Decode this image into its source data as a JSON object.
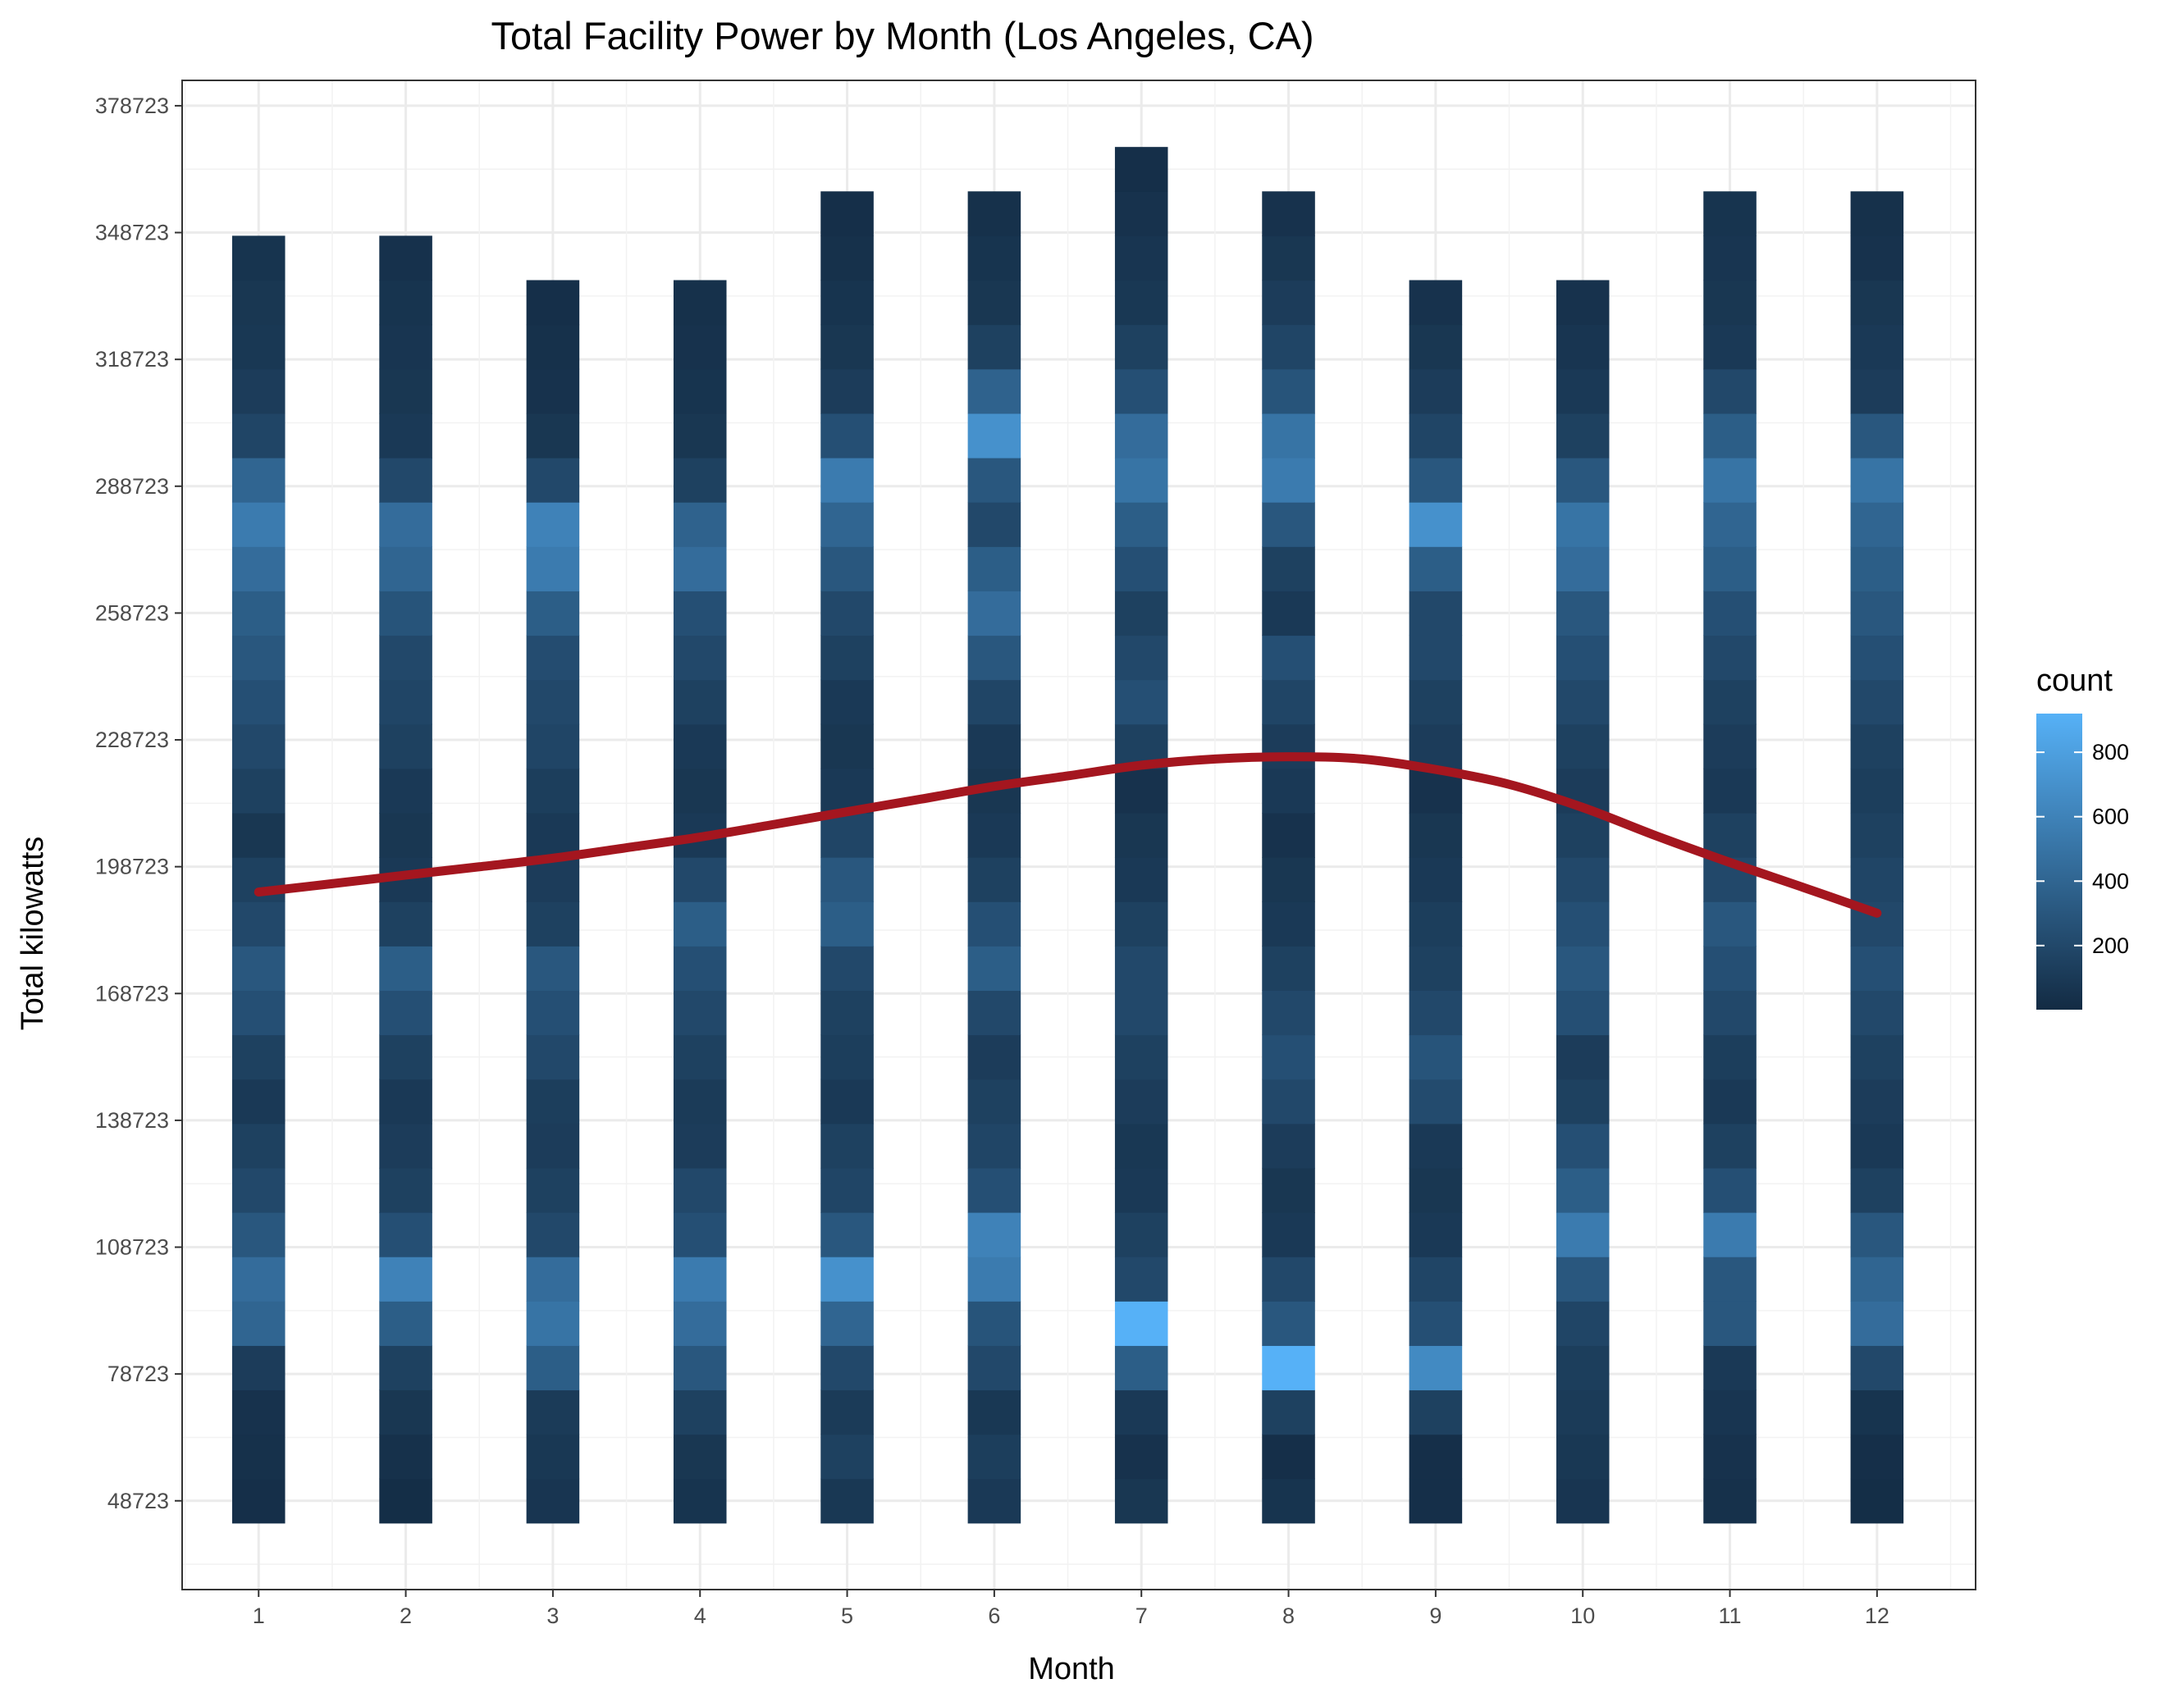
{
  "chart_data": {
    "type": "heatmap",
    "title": "Total Facility Power by Month (Los Angeles, CA)",
    "xlabel": "Month",
    "ylabel": "Total kilowatts",
    "x_ticks": [
      "1",
      "2",
      "3",
      "4",
      "5",
      "6",
      "7",
      "8",
      "9",
      "10",
      "11",
      "12"
    ],
    "y_ticks": [
      "48723",
      "78723",
      "108723",
      "138723",
      "168723",
      "198723",
      "228723",
      "258723",
      "288723",
      "318723",
      "348723",
      "378723"
    ],
    "y_tick_values": [
      48723,
      78723,
      108723,
      138723,
      168723,
      198723,
      228723,
      258723,
      288723,
      318723,
      348723,
      378723
    ],
    "xlim": [
      0.48,
      12.67
    ],
    "ylim": [
      27723,
      384723
    ],
    "bin_height": 10500,
    "bin_width": 0.36,
    "bin_start": 43473,
    "grid": true,
    "legend": {
      "title": "count",
      "position": "right",
      "ticks": [
        "200",
        "400",
        "600",
        "800"
      ],
      "tick_values": [
        200,
        400,
        600,
        800
      ],
      "range": [
        1,
        920
      ],
      "color_low": "#132B43",
      "color_high": "#56B1F7"
    },
    "columns": [
      {
        "month": 1.0,
        "counts": [
          30,
          40,
          50,
          120,
          400,
          450,
          300,
          200,
          150,
          100,
          150,
          250,
          300,
          200,
          150,
          80,
          150,
          200,
          250,
          300,
          350,
          450,
          550,
          400,
          180,
          120,
          90,
          80,
          60
        ]
      },
      {
        "month": 2.0,
        "counts": [
          20,
          40,
          80,
          150,
          350,
          600,
          250,
          150,
          120,
          100,
          150,
          250,
          350,
          150,
          100,
          80,
          100,
          150,
          180,
          200,
          280,
          400,
          450,
          200,
          100,
          80,
          70,
          60,
          45
        ]
      },
      {
        "month": 3.0,
        "counts": [
          70,
          90,
          110,
          350,
          500,
          450,
          200,
          150,
          120,
          130,
          200,
          250,
          300,
          150,
          120,
          100,
          130,
          180,
          200,
          230,
          350,
          550,
          600,
          200,
          80,
          50,
          40,
          30
        ]
      },
      {
        "month": 4.0,
        "counts": [
          60,
          80,
          150,
          300,
          450,
          550,
          250,
          200,
          120,
          110,
          150,
          200,
          250,
          350,
          200,
          100,
          80,
          100,
          150,
          200,
          250,
          450,
          380,
          150,
          80,
          60,
          50,
          40
        ]
      },
      {
        "month": 5.0,
        "counts": [
          90,
          150,
          110,
          200,
          400,
          700,
          300,
          180,
          150,
          100,
          130,
          150,
          200,
          350,
          300,
          180,
          100,
          80,
          100,
          150,
          200,
          300,
          400,
          550,
          250,
          120,
          80,
          60,
          40,
          30
        ]
      },
      {
        "month": 6.0,
        "counts": [
          100,
          130,
          90,
          200,
          280,
          550,
          600,
          250,
          180,
          150,
          120,
          200,
          350,
          250,
          150,
          100,
          80,
          100,
          180,
          300,
          450,
          350,
          200,
          300,
          700,
          380,
          150,
          80,
          60,
          40
        ]
      },
      {
        "month": 7.0,
        "counts": [
          80,
          50,
          100,
          350,
          920,
          200,
          150,
          100,
          90,
          120,
          150,
          200,
          200,
          150,
          100,
          80,
          50,
          150,
          250,
          200,
          150,
          250,
          350,
          500,
          450,
          250,
          150,
          90,
          70,
          50,
          30
        ]
      },
      {
        "month": 8.0,
        "counts": [
          60,
          30,
          150,
          920,
          300,
          200,
          100,
          80,
          120,
          200,
          250,
          200,
          150,
          100,
          80,
          50,
          100,
          120,
          180,
          250,
          100,
          150,
          300,
          550,
          500,
          280,
          180,
          120,
          80,
          50
        ]
      },
      {
        "month": 9.0,
        "counts": [
          30,
          30,
          150,
          650,
          250,
          180,
          100,
          80,
          100,
          220,
          280,
          200,
          150,
          130,
          100,
          80,
          50,
          120,
          150,
          200,
          200,
          350,
          700,
          300,
          180,
          120,
          80,
          50
        ]
      },
      {
        "month": 10.0,
        "counts": [
          70,
          90,
          110,
          130,
          180,
          300,
          550,
          350,
          250,
          150,
          120,
          250,
          300,
          250,
          200,
          150,
          120,
          150,
          200,
          250,
          300,
          450,
          500,
          300,
          150,
          100,
          70,
          50
        ]
      },
      {
        "month": 11.0,
        "counts": [
          40,
          50,
          70,
          100,
          300,
          300,
          550,
          250,
          150,
          100,
          130,
          200,
          250,
          300,
          200,
          150,
          100,
          120,
          150,
          200,
          250,
          350,
          400,
          500,
          350,
          200,
          100,
          80,
          70,
          60
        ]
      },
      {
        "month": 12.0,
        "counts": [
          20,
          30,
          60,
          200,
          450,
          400,
          300,
          150,
          100,
          120,
          150,
          200,
          250,
          200,
          180,
          150,
          130,
          150,
          200,
          250,
          300,
          350,
          400,
          500,
          300,
          120,
          100,
          80,
          50,
          40
        ]
      }
    ],
    "smooth_line": {
      "color": "#A4161F",
      "x": [
        1.0,
        1.5,
        2.0,
        2.5,
        3.0,
        3.5,
        4.0,
        4.5,
        5.0,
        5.5,
        6.0,
        6.5,
        7.0,
        7.5,
        8.0,
        8.5,
        9.0,
        9.5,
        10.0,
        10.5,
        11.0,
        11.5,
        12.0
      ],
      "y": [
        192723,
        194700,
        196723,
        198700,
        200723,
        203200,
        205723,
        208700,
        211723,
        214700,
        217723,
        220200,
        222723,
        224200,
        224723,
        224200,
        221723,
        218200,
        212723,
        206000,
        199723,
        193800,
        187723
      ]
    }
  }
}
